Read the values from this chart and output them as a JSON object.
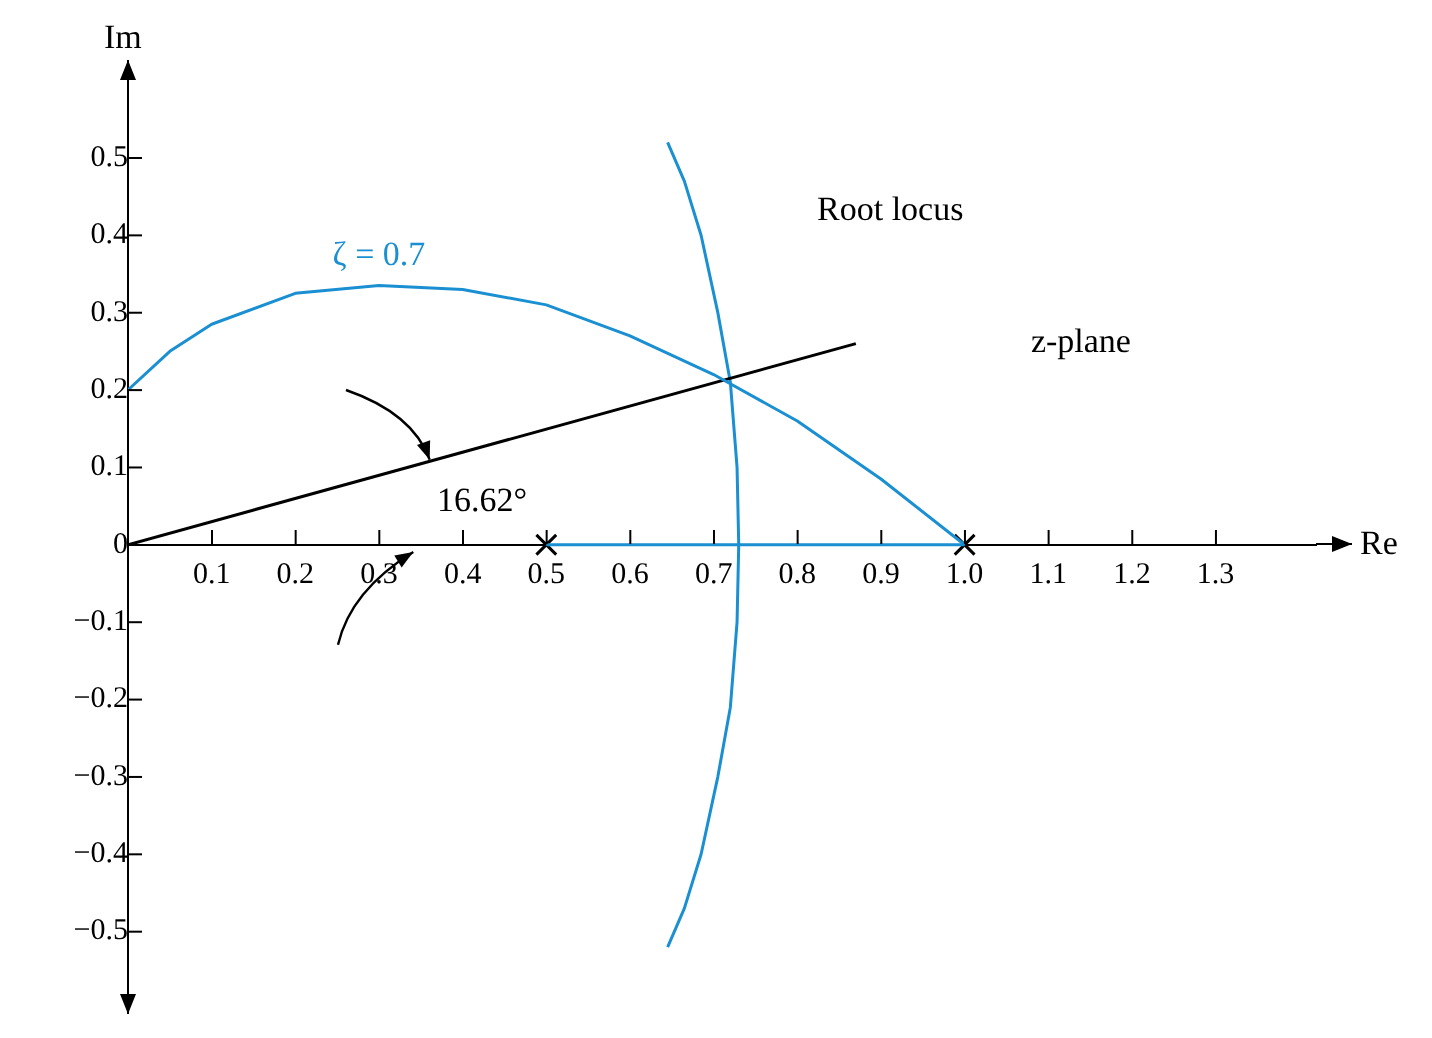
{
  "chart_data": {
    "type": "line",
    "xlabel": "Re",
    "ylabel": "Im",
    "xlim": [
      0,
      1.42
    ],
    "ylim": [
      -0.56,
      0.58
    ],
    "xticks": [
      0.1,
      0.2,
      0.3,
      0.4,
      0.5,
      0.6,
      0.7,
      0.8,
      0.9,
      {
        "value": 1,
        "label": "1.0"
      },
      1.1,
      1.2,
      1.3
    ],
    "yticks": [
      -0.5,
      -0.4,
      -0.3,
      -0.2,
      -0.1,
      0,
      0.1,
      0.2,
      0.3,
      0.4,
      0.5
    ],
    "grid": false,
    "legend": false,
    "series": [
      {
        "name": "ζ = 0.7",
        "color": "#1a8fd1",
        "marker": "none",
        "x": [
          0,
          0.05,
          0.1,
          0.2,
          0.3,
          0.4,
          0.5,
          0.6,
          0.7,
          0.8,
          0.9,
          1.0
        ],
        "values": [
          0.2,
          0.25,
          0.285,
          0.325,
          0.335,
          0.33,
          0.31,
          0.27,
          0.22,
          0.16,
          0.085,
          0
        ]
      },
      {
        "color": "#000000",
        "marker": "none",
        "x": [
          0,
          0.87
        ],
        "values": [
          0,
          0.26
        ]
      },
      {
        "color": "#1a8fd1",
        "marker": "none",
        "x": [
          0.645,
          0.665,
          0.685,
          0.705,
          0.72,
          0.728,
          0.73,
          0.728,
          0.72,
          0.705,
          0.685,
          0.665,
          0.645
        ],
        "values": [
          0.52,
          0.47,
          0.4,
          0.3,
          0.21,
          0.1,
          0,
          -0.1,
          -0.21,
          -0.3,
          -0.4,
          -0.47,
          -0.52
        ]
      },
      {
        "color": "#1a8fd1",
        "marker": "none",
        "x": [
          0.5,
          1.0
        ],
        "values": [
          0,
          0
        ]
      },
      {
        "type": "scatter",
        "color": "#000000",
        "marker": "cross",
        "x": [
          0.5,
          1.0
        ],
        "values": [
          0,
          0
        ]
      }
    ],
    "annotations": [
      "Root locus",
      "z-plane",
      "16.62°"
    ]
  }
}
